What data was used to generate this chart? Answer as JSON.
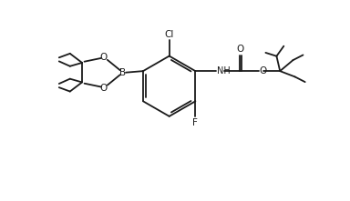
{
  "bg_color": "#ffffff",
  "line_color": "#1a1a1a",
  "line_width": 1.3,
  "figsize": [
    3.84,
    2.21
  ],
  "dpi": 100,
  "xlim": [
    0,
    10
  ],
  "ylim": [
    -1.5,
    5.5
  ]
}
